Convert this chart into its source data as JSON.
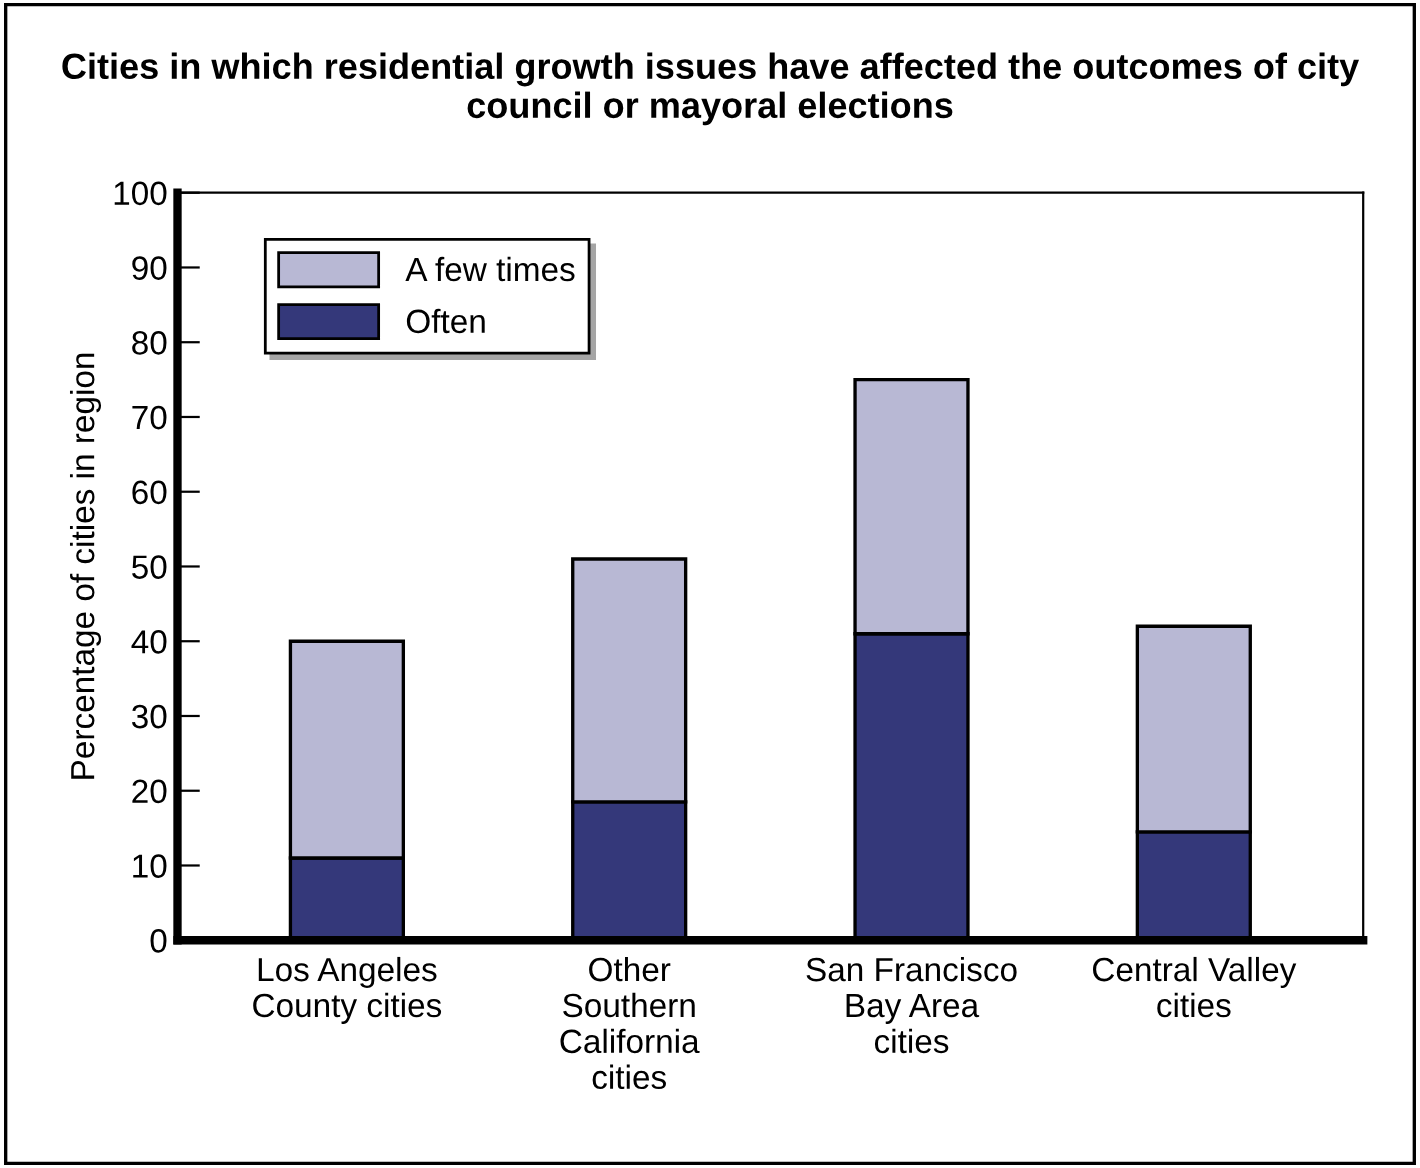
{
  "chart_data": {
    "type": "bar",
    "stacked": true,
    "title": "Cities in which residential growth issues have affected the outcomes of city council or mayoral elections",
    "ylabel": "Percentage of cities in region",
    "categories": [
      "Los Angeles\nCounty cities",
      "Other\nSouthern\nCalifornia\ncities",
      "San Francisco\nBay Area\ncities",
      "Central Valley\ncities"
    ],
    "series": [
      {
        "name": "Often",
        "color": "#34387a",
        "values": [
          11,
          18.5,
          41,
          14.5
        ]
      },
      {
        "name": "A few times",
        "color": "#b8b8d4",
        "values": [
          29,
          32.5,
          34,
          27.5
        ]
      }
    ],
    "ylim": [
      0,
      100
    ],
    "yticks": [
      0,
      10,
      20,
      30,
      40,
      50,
      60,
      70,
      80,
      90,
      100
    ],
    "grid": false,
    "legend": "top left"
  }
}
